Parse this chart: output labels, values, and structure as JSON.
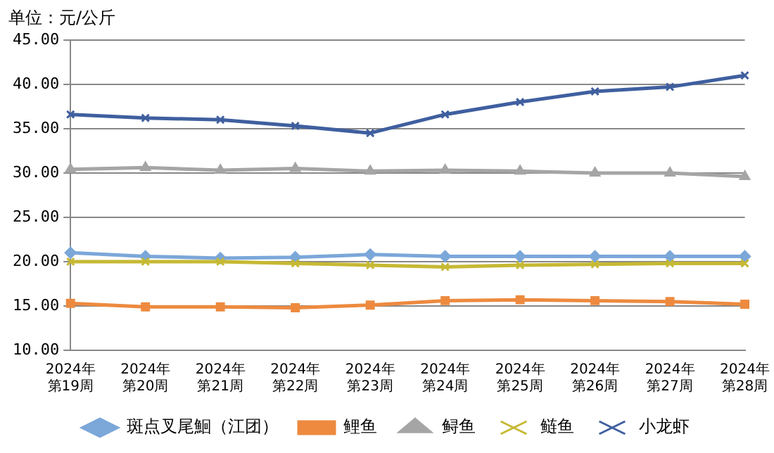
{
  "chart_data": {
    "type": "line",
    "title": "单位：元/公斤",
    "categories": [
      "2024年第19周",
      "2024年第20周",
      "2024年第21周",
      "2024年第22周",
      "2024年第23周",
      "2024年第24周",
      "2024年第25周",
      "2024年第26周",
      "2024年第27周",
      "2024年第28周"
    ],
    "series": [
      {
        "name": "斑点叉尾鮰（江团）",
        "color": "#7ba7d9",
        "marker": "diamond",
        "values": [
          21.0,
          20.6,
          20.4,
          20.5,
          20.8,
          20.6,
          20.6,
          20.6,
          20.6,
          20.6
        ]
      },
      {
        "name": "鲤鱼",
        "color": "#ed8a3f",
        "marker": "square",
        "values": [
          15.3,
          14.9,
          14.9,
          14.8,
          15.1,
          15.6,
          15.7,
          15.6,
          15.5,
          15.2
        ]
      },
      {
        "name": "鲟鱼",
        "color": "#a5a5a5",
        "marker": "triangle",
        "values": [
          30.4,
          30.6,
          30.3,
          30.5,
          30.2,
          30.3,
          30.2,
          30.0,
          30.0,
          29.6
        ]
      },
      {
        "name": "鲢鱼",
        "color": "#c6b934",
        "marker": "cross",
        "values": [
          20.0,
          20.0,
          20.0,
          19.8,
          19.6,
          19.4,
          19.6,
          19.7,
          19.8,
          19.8
        ]
      },
      {
        "name": "小龙虾",
        "color": "#3f5f9f",
        "marker": "cross",
        "values": [
          36.6,
          36.2,
          36.0,
          35.3,
          34.5,
          36.6,
          38.0,
          39.2,
          39.7,
          41.0
        ]
      }
    ],
    "ylim": [
      10,
      45
    ],
    "yticks": [
      {
        "value": 10,
        "label": "10.00"
      },
      {
        "value": 15,
        "label": "15.00"
      },
      {
        "value": 20,
        "label": "20.00"
      },
      {
        "value": 25,
        "label": "25.00"
      },
      {
        "value": 30,
        "label": "30.00"
      },
      {
        "value": 35,
        "label": "35.00"
      },
      {
        "value": 40,
        "label": "40.00"
      },
      {
        "value": 45,
        "label": "45.00"
      }
    ],
    "grid": "y",
    "legend": "bottom"
  }
}
